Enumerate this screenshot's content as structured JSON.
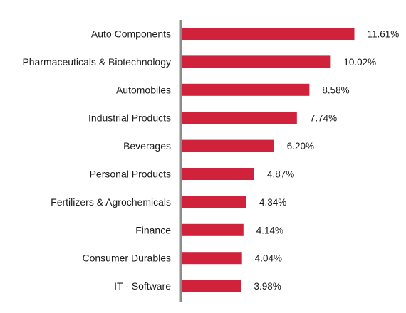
{
  "chart_data": {
    "type": "bar",
    "orientation": "horizontal",
    "title": "",
    "xlabel": "",
    "ylabel": "",
    "categories": [
      "Auto Components",
      "Pharmaceuticals & Biotechnology",
      "Automobiles",
      "Industrial Products",
      "Beverages",
      "Personal Products",
      "Fertilizers & Agrochemicals",
      "Finance",
      "Consumer Durables",
      "IT - Software"
    ],
    "values": [
      11.61,
      10.02,
      8.58,
      7.74,
      6.2,
      4.87,
      4.34,
      4.14,
      4.04,
      3.98
    ],
    "value_labels": [
      "11.61%",
      "10.02%",
      "8.58%",
      "7.74%",
      "6.20%",
      "4.87%",
      "4.34%",
      "4.14%",
      "4.04%",
      "3.98%"
    ],
    "xlim": [
      0,
      11.61
    ],
    "grid": false,
    "legend": "none",
    "colors": {
      "bar": "#d0223a",
      "axis": "#8c8c8c",
      "text": "#1a1a1a"
    }
  }
}
